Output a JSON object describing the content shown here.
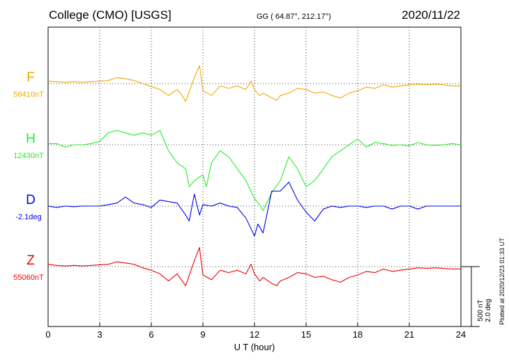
{
  "header": {
    "station": "College (CMO)  [USGS]",
    "coords": "GG ( 64.87°, 212.17°)",
    "date": "2020/11/22"
  },
  "side": {
    "plotted": "Plotted at 2020/12/23 01:33 UT",
    "scale_nt": "500 nT",
    "scale_deg": "2.0 deg"
  },
  "chart_data": {
    "type": "line",
    "xlabel": "U T (hour)",
    "xlim": [
      0,
      24
    ],
    "x_ticks": [
      "0",
      "3",
      "6",
      "9",
      "12",
      "15",
      "18",
      "21",
      "24"
    ],
    "scale_bar": "500 nT / 2.0 deg",
    "grid": true,
    "series": [
      {
        "name": "F",
        "baseline_label": "56410nT",
        "color": "#f0a800",
        "x": [
          0,
          0.5,
          1,
          1.5,
          2,
          2.5,
          3,
          3.5,
          4,
          4.5,
          5,
          5.5,
          6,
          6.5,
          7,
          7.5,
          7.8,
          8,
          8.5,
          8.8,
          9,
          9.5,
          10,
          10.5,
          11,
          11.5,
          11.8,
          12,
          12.3,
          12.5,
          13,
          13.3,
          13.5,
          14,
          14.5,
          15,
          15.5,
          16,
          16.5,
          17,
          17.5,
          18,
          18.5,
          19,
          19.5,
          20,
          20.5,
          21,
          21.5,
          22,
          22.5,
          23,
          23.5,
          24
        ],
        "y": [
          20,
          15,
          10,
          15,
          10,
          15,
          20,
          25,
          50,
          40,
          25,
          0,
          -25,
          -50,
          -100,
          -50,
          -100,
          -150,
          50,
          150,
          -60,
          -100,
          -20,
          -40,
          -20,
          -50,
          20,
          -50,
          -100,
          -80,
          -120,
          -140,
          -100,
          -80,
          -40,
          -50,
          -80,
          -70,
          -100,
          -120,
          -80,
          -60,
          -30,
          -40,
          -10,
          -30,
          -20,
          -10,
          -5,
          -10,
          -5,
          -10,
          -20,
          -20
        ]
      },
      {
        "name": "H",
        "baseline_label": "12430nT",
        "color": "#22ee22",
        "x": [
          0,
          0.5,
          1,
          1.5,
          2,
          2.5,
          3,
          3.5,
          4,
          4.5,
          5,
          5.5,
          6,
          6.5,
          7,
          7.5,
          8,
          8.2,
          8.5,
          9,
          9.2,
          9.5,
          10,
          10.5,
          11,
          11.5,
          12,
          12.3,
          12.5,
          13,
          13.5,
          14,
          14.5,
          15,
          15.5,
          16,
          16.5,
          17,
          17.5,
          18,
          18.5,
          19,
          19.5,
          20,
          20.5,
          21,
          21.5,
          22,
          22.5,
          23,
          23.5,
          24
        ],
        "y": [
          10,
          10,
          -20,
          0,
          0,
          10,
          30,
          100,
          120,
          100,
          80,
          100,
          80,
          120,
          -50,
          -150,
          -200,
          -350,
          -300,
          -250,
          -350,
          -150,
          -50,
          -100,
          -200,
          -300,
          -450,
          -500,
          -550,
          -400,
          -300,
          -100,
          -200,
          -350,
          -300,
          -200,
          -100,
          -50,
          0,
          50,
          -20,
          20,
          10,
          -5,
          0,
          -10,
          20,
          0,
          -5,
          0,
          10,
          0
        ]
      },
      {
        "name": "D",
        "baseline_label": "-2.1deg",
        "color": "#0000ee",
        "x": [
          0,
          0.5,
          1,
          1.5,
          2,
          2.5,
          3,
          3.5,
          4,
          4.5,
          5,
          5.5,
          6,
          6.5,
          7,
          7.5,
          8,
          8.2,
          8.5,
          8.8,
          9,
          9.5,
          10,
          10.5,
          11,
          11.5,
          12,
          12.2,
          12.5,
          13,
          13.5,
          14,
          14.5,
          15,
          15.5,
          16,
          16.5,
          17,
          17.5,
          18,
          18.5,
          19,
          19.5,
          20,
          20.5,
          21,
          21.5,
          22,
          22.5,
          23,
          23.5,
          24
        ],
        "y": [
          0,
          -0.05,
          0,
          -0.02,
          0,
          0,
          0,
          0.05,
          0.1,
          0.3,
          0.1,
          0.05,
          -0.05,
          0.2,
          0.15,
          0.1,
          -0.3,
          -0.5,
          0.4,
          -0.3,
          0.05,
          0,
          0.1,
          0,
          -0.05,
          -0.4,
          -1.0,
          -0.6,
          -0.9,
          0.5,
          0.5,
          0.8,
          0.2,
          -0.2,
          -0.5,
          -0.1,
          0,
          -0.05,
          0,
          0,
          -0.05,
          0,
          0,
          -0.1,
          0,
          0,
          -0.1,
          0,
          0,
          0,
          0,
          0
        ]
      },
      {
        "name": "Z",
        "baseline_label": "55060nT",
        "color": "#ee0000",
        "x": [
          0,
          0.5,
          1,
          1.5,
          2,
          2.5,
          3,
          3.5,
          4,
          4.5,
          5,
          5.5,
          6,
          6.5,
          7,
          7.5,
          7.8,
          8,
          8.5,
          8.8,
          9,
          9.5,
          10,
          10.5,
          11,
          11.5,
          11.8,
          12,
          12.3,
          12.5,
          13,
          13.3,
          13.5,
          14,
          14.5,
          15,
          15.5,
          16,
          16.5,
          17,
          17.5,
          18,
          18.5,
          19,
          19.5,
          20,
          20.5,
          21,
          21.5,
          22,
          22.5,
          23,
          23.5,
          24
        ],
        "y": [
          20,
          10,
          5,
          10,
          5,
          10,
          15,
          20,
          40,
          30,
          20,
          -10,
          -30,
          -60,
          -120,
          -60,
          -120,
          -160,
          50,
          160,
          -70,
          -110,
          -30,
          -50,
          -30,
          -60,
          20,
          -60,
          -120,
          -90,
          -140,
          -160,
          -120,
          -90,
          -50,
          -60,
          -90,
          -80,
          -110,
          -130,
          -90,
          -70,
          -40,
          -50,
          -20,
          -40,
          -30,
          -20,
          -10,
          -15,
          -10,
          -15,
          -20,
          -20
        ]
      }
    ]
  }
}
